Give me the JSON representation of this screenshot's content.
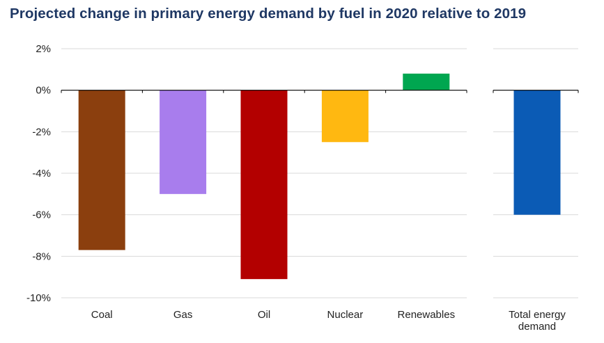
{
  "chart_data": {
    "type": "bar",
    "title": "Projected change in primary energy demand by fuel in 2020 relative to 2019",
    "categories": [
      "Coal",
      "Gas",
      "Oil",
      "Nuclear",
      "Renewables"
    ],
    "values": [
      -7.7,
      -5.0,
      -9.1,
      -2.5,
      0.8
    ],
    "colors": [
      "#8b3f0e",
      "#a87ded",
      "#b30000",
      "#ffb811",
      "#00a650"
    ],
    "total": {
      "label_lines": [
        "Total energy",
        "demand"
      ],
      "value": -6.0,
      "color": "#0b5bb5"
    },
    "y_ticks": [
      "2%",
      "0%",
      "-2%",
      "-4%",
      "-6%",
      "-8%",
      "-10%"
    ],
    "ylim": [
      -10,
      2
    ],
    "grid": true,
    "legend": "none",
    "title_color": "#1f3864",
    "grid_color": "#d9d9d9"
  }
}
